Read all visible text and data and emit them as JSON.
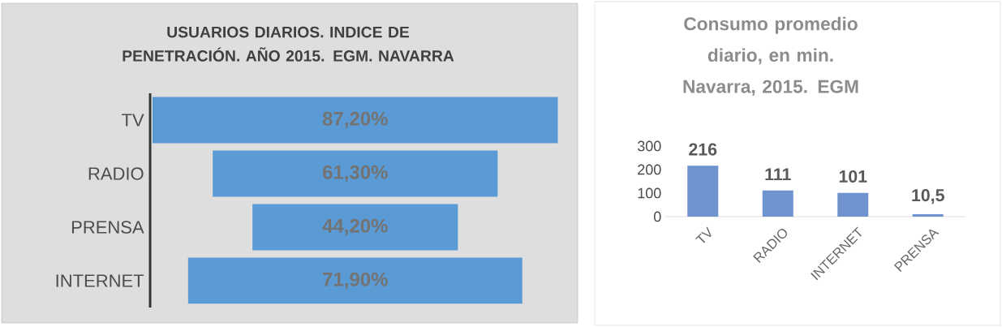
{
  "chart_data": [
    {
      "type": "other",
      "title": "USUARIOS DIARIOS. INDICE DE PENETRACIÓN. AÑO 2015. EGM. NAVARRA",
      "categories": [
        "TV",
        "RADIO",
        "PRENSA",
        "INTERNET"
      ],
      "values": [
        87.2,
        61.3,
        44.2,
        71.9
      ],
      "value_labels": [
        "87,20%",
        "61,30%",
        "44,20%",
        "71,90%"
      ],
      "color": "#5b9bd5"
    },
    {
      "type": "bar",
      "title": "Consumo promedio diario, en min. Navarra, 2015. EGM",
      "categories": [
        "TV",
        "RADIO",
        "INTERNET",
        "PRENSA"
      ],
      "values": [
        216,
        111,
        101,
        10.5
      ],
      "value_labels": [
        "216",
        "111",
        "101",
        "10,5"
      ],
      "color": "#6f93cf",
      "ylim": [
        0,
        300
      ],
      "yticks": [
        0,
        100,
        200,
        300
      ]
    }
  ]
}
